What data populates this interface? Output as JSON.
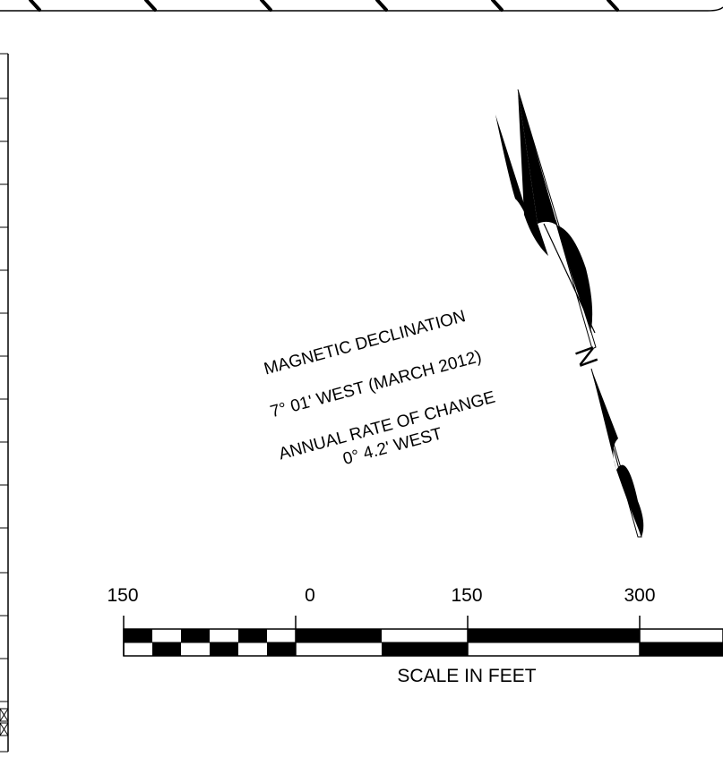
{
  "declination": {
    "title": "MAGNETIC DECLINATION",
    "value": "7° 01' WEST (MARCH 2012)",
    "rate_label": "ANNUAL RATE OF CHANGE",
    "rate_value": "0° 4.2' WEST"
  },
  "north_arrow": {
    "label": "N"
  },
  "scale_bar": {
    "ticks": [
      "150",
      "0",
      "150",
      "300"
    ],
    "caption": "SCALE IN FEET"
  },
  "colors": {
    "ink": "#000000",
    "paper": "#ffffff"
  }
}
